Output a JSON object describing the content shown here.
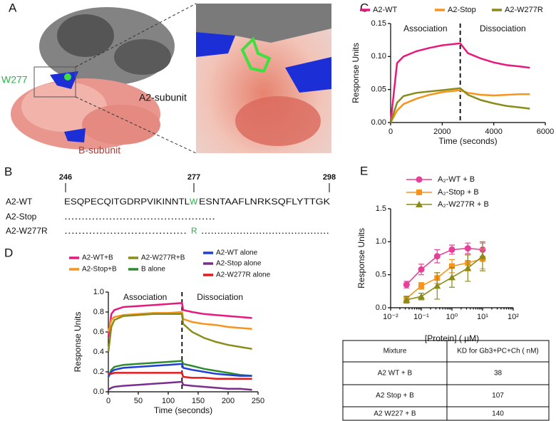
{
  "panel_labels": [
    "A",
    "B",
    "C",
    "D",
    "E"
  ],
  "panel_a": {
    "residue": "W277",
    "subunit_a": "A2-subunit",
    "subunit_b": "B-subunit"
  },
  "panel_b": {
    "positions": [
      246,
      277,
      298
    ],
    "rows": [
      {
        "name": "A2-WT",
        "segments": [
          "ESQPECQITGDRPVIKINNTL",
          "W",
          "ESNTAAFLNRKSQFLYTTGK"
        ]
      },
      {
        "name": "A2-Stop",
        "segments": [
          "............................................"
        ]
      },
      {
        "name": "A2-W277R",
        "segments": [
          "...................................",
          "R",
          "........................................"
        ]
      }
    ]
  },
  "chart_data": [
    {
      "type": "line",
      "ylabel": "Response Units",
      "xlabel": "Time (seconds)",
      "x": [
        0,
        250,
        500,
        1000,
        1500,
        2000,
        2700,
        3000,
        3500,
        4000,
        4500,
        5000,
        5400
      ],
      "series": [
        {
          "name": "A2-WT",
          "color": "#e8197d",
          "values": [
            0,
            0.09,
            0.1,
            0.108,
            0.113,
            0.117,
            0.12,
            0.105,
            0.097,
            0.091,
            0.087,
            0.085,
            0.083
          ]
        },
        {
          "name": "A2-Stop",
          "color": "#f7941d",
          "values": [
            0,
            0.018,
            0.028,
            0.036,
            0.042,
            0.046,
            0.049,
            0.045,
            0.042,
            0.041,
            0.042,
            0.043,
            0.043
          ]
        },
        {
          "name": "A2-W277R",
          "color": "#8b8b1a",
          "values": [
            0,
            0.03,
            0.04,
            0.045,
            0.047,
            0.049,
            0.052,
            0.042,
            0.034,
            0.029,
            0.025,
            0.023,
            0.021
          ]
        }
      ],
      "xlim": [
        0,
        6000
      ],
      "xticks": [
        0,
        2000,
        4000,
        6000
      ],
      "ylim": [
        0,
        0.15
      ],
      "yticks": [
        {
          "value": 0,
          "label": "0.00"
        },
        {
          "value": 0.05,
          "label": "0.05"
        },
        {
          "value": 0.1,
          "label": "0.10"
        },
        {
          "value": 0.15,
          "label": "0.15"
        }
      ],
      "divider_x": 2700,
      "annotations": [
        "Association",
        "Dissociation"
      ]
    },
    {
      "type": "line",
      "ylabel": "Response Units",
      "xlabel": "Time (seconds)",
      "x": [
        0,
        5,
        10,
        25,
        50,
        75,
        100,
        123,
        125,
        140,
        160,
        180,
        200,
        220,
        240
      ],
      "series": [
        {
          "name": "A2-WT+B",
          "color": "#e8197d",
          "values": [
            0.55,
            0.78,
            0.82,
            0.85,
            0.86,
            0.87,
            0.88,
            0.89,
            0.82,
            0.8,
            0.78,
            0.77,
            0.76,
            0.75,
            0.74
          ]
        },
        {
          "name": "A2-Stop+B",
          "color": "#f7941d",
          "values": [
            0.6,
            0.72,
            0.75,
            0.77,
            0.78,
            0.79,
            0.79,
            0.8,
            0.73,
            0.7,
            0.68,
            0.67,
            0.65,
            0.64,
            0.63
          ]
        },
        {
          "name": "A2-W277R+B",
          "color": "#8b8b1a",
          "values": [
            0.4,
            0.65,
            0.72,
            0.76,
            0.77,
            0.78,
            0.78,
            0.78,
            0.68,
            0.6,
            0.54,
            0.5,
            0.47,
            0.45,
            0.43
          ]
        },
        {
          "name": "B alone",
          "color": "#2e8b2e",
          "values": [
            0.15,
            0.22,
            0.25,
            0.27,
            0.28,
            0.29,
            0.3,
            0.31,
            0.28,
            0.26,
            0.23,
            0.21,
            0.19,
            0.17,
            0.16
          ]
        },
        {
          "name": "A2-WT alone",
          "color": "#1f3fd8",
          "values": [
            0.15,
            0.2,
            0.22,
            0.24,
            0.25,
            0.26,
            0.27,
            0.28,
            0.24,
            0.22,
            0.2,
            0.18,
            0.17,
            0.16,
            0.16
          ]
        },
        {
          "name": "A2-Stop alone",
          "color": "#7b2d8e",
          "values": [
            0.02,
            0.04,
            0.05,
            0.06,
            0.07,
            0.08,
            0.09,
            0.1,
            0.07,
            0.06,
            0.05,
            0.04,
            0.03,
            0.03,
            0.02
          ]
        },
        {
          "name": "A2-W277R alone",
          "color": "#e31a1c",
          "values": [
            0.18,
            0.18,
            0.19,
            0.19,
            0.19,
            0.19,
            0.19,
            0.19,
            0.15,
            0.14,
            0.14,
            0.13,
            0.13,
            0.13,
            0.13
          ]
        }
      ],
      "xlim": [
        0,
        250
      ],
      "xticks": [
        0,
        50,
        100,
        150,
        200,
        250
      ],
      "ylim": [
        0,
        1
      ],
      "yticks": [
        {
          "value": 0,
          "label": "0.0"
        },
        {
          "value": 0.2,
          "label": "0.2"
        },
        {
          "value": 0.4,
          "label": "0.4"
        },
        {
          "value": 0.6,
          "label": "0.6"
        },
        {
          "value": 0.8,
          "label": "0.8"
        },
        {
          "value": 1,
          "label": "1.0"
        }
      ],
      "divider_x": 123,
      "annotations": [
        "Association",
        "Dissociation"
      ]
    },
    {
      "type": "scatter",
      "ylabel": "Response Units",
      "xlabel": "[Protein] ( µM)",
      "xscale": "log",
      "x": [
        0.033,
        0.1,
        0.33,
        1,
        3.3,
        10
      ],
      "series": [
        {
          "name": "A₂-WT + B",
          "color": "#e8409a",
          "marker": "circle",
          "values": [
            0.35,
            0.58,
            0.78,
            0.88,
            0.9,
            0.88
          ],
          "errors": [
            0.05,
            0.08,
            0.1,
            0.07,
            0.08,
            0.1
          ]
        },
        {
          "name": "A₂-Stop + B",
          "color": "#f7941d",
          "marker": "square",
          "values": [
            0.14,
            0.33,
            0.45,
            0.63,
            0.68,
            0.74
          ],
          "errors": [
            0.03,
            0.05,
            0.08,
            0.1,
            0.12,
            0.15
          ]
        },
        {
          "name": "A₂-W277R + B",
          "color": "#8b8b1a",
          "marker": "triangle",
          "values": [
            0.12,
            0.17,
            0.33,
            0.46,
            0.6,
            0.78
          ],
          "errors": [
            0.05,
            0.05,
            0.2,
            0.15,
            0.2,
            0.22
          ]
        }
      ],
      "xlim": [
        0.01,
        100
      ],
      "xticks": [
        {
          "value": 0.01,
          "label": "10⁻²"
        },
        {
          "value": 0.1,
          "label": "10⁻¹"
        },
        {
          "value": 1,
          "label": "10⁰"
        },
        {
          "value": 10,
          "label": "10¹"
        },
        {
          "value": 100,
          "label": "10²"
        }
      ],
      "ylim": [
        0,
        1.5
      ],
      "yticks": [
        {
          "value": 0,
          "label": "0.0"
        },
        {
          "value": 0.5,
          "label": "0.5"
        },
        {
          "value": 1,
          "label": "1.0"
        },
        {
          "value": 1.5,
          "label": "1.5"
        }
      ]
    }
  ],
  "table": {
    "header": [
      "Mixture",
      "KD for Gb3+PC+Ch ( nM)"
    ],
    "rows": [
      [
        "A2 WT + B",
        38
      ],
      [
        "A2 Stop + B",
        107
      ],
      [
        "A2 W227 + B",
        140
      ]
    ]
  }
}
